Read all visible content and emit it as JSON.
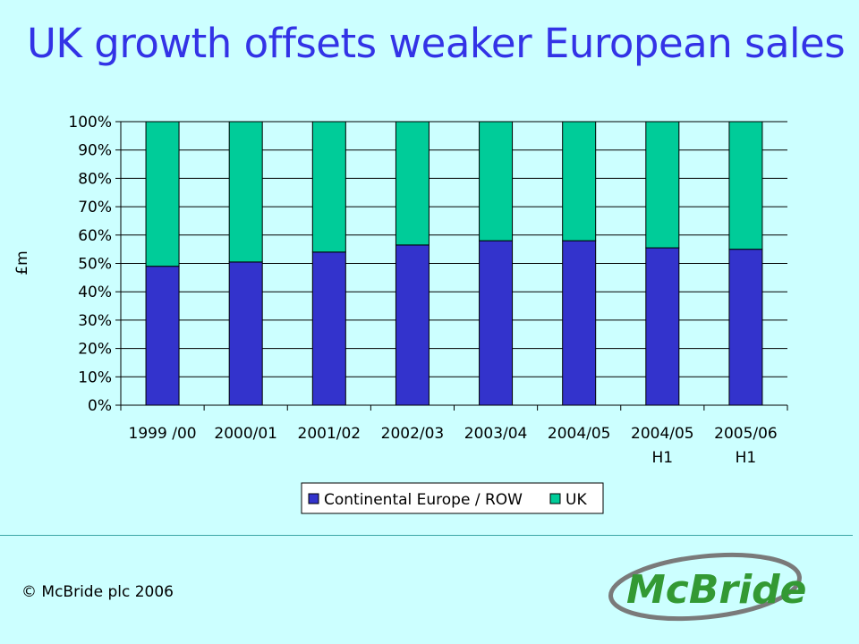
{
  "slide": {
    "title": "UK growth offsets weaker European sales",
    "copyright": "© McBride plc 2006",
    "logo_text": "McBride"
  },
  "chart_data": {
    "type": "bar",
    "stacked": true,
    "percent": true,
    "categories": [
      [
        "1999 /00"
      ],
      [
        "2000/01"
      ],
      [
        "2001/02"
      ],
      [
        "2002/03"
      ],
      [
        "2003/04"
      ],
      [
        "2004/05"
      ],
      [
        "2004/05",
        "H1"
      ],
      [
        "2005/06",
        "H1"
      ]
    ],
    "series": [
      {
        "name": "Continental Europe / ROW",
        "color": "#3333cc",
        "values": [
          49,
          50.5,
          54,
          56.5,
          58,
          58,
          55.5,
          55
        ]
      },
      {
        "name": "UK",
        "color": "#00cc99",
        "values": [
          51,
          49.5,
          46,
          43.5,
          42,
          42,
          44.5,
          45
        ]
      }
    ],
    "ylabel": "£m",
    "ylim": [
      0,
      100
    ],
    "yticks": [
      "0%",
      "10%",
      "20%",
      "30%",
      "40%",
      "50%",
      "60%",
      "70%",
      "80%",
      "90%",
      "100%"
    ],
    "grid": true,
    "legend_position": "bottom"
  }
}
